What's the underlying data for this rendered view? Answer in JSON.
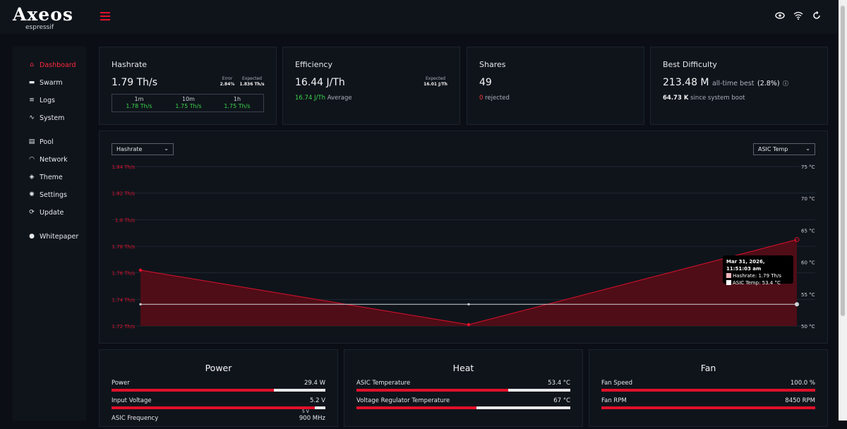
{
  "brand": {
    "name": "Axeos",
    "sub": "espressif"
  },
  "colors": {
    "accent": "#e0102a",
    "good": "#3bd44b",
    "bg": "#0b0f15",
    "card": "#0f141b"
  },
  "topbar": {
    "icons": [
      "eye-icon",
      "wifi-icon",
      "refresh-icon"
    ]
  },
  "sidebar": {
    "items": [
      {
        "label": "Dashboard",
        "icon": "home-icon",
        "glyph": "⌂",
        "active": true
      },
      {
        "label": "Swarm",
        "icon": "swarm-icon",
        "glyph": "▬"
      },
      {
        "label": "Logs",
        "icon": "list-icon",
        "glyph": "≡"
      },
      {
        "label": "System",
        "icon": "pulse-icon",
        "glyph": "∿"
      },
      {
        "label": "Pool",
        "icon": "server-icon",
        "glyph": "▤"
      },
      {
        "label": "Network",
        "icon": "wifi-icon",
        "glyph": "◠"
      },
      {
        "label": "Theme",
        "icon": "palette-icon",
        "glyph": "◈"
      },
      {
        "label": "Settings",
        "icon": "gear-icon",
        "glyph": "✺"
      },
      {
        "label": "Update",
        "icon": "sync-icon",
        "glyph": "⟳"
      },
      {
        "label": "Whitepaper",
        "icon": "bitcoin-icon",
        "glyph": "●"
      }
    ]
  },
  "hashrate": {
    "title": "Hashrate",
    "value": "1.79 Th/s",
    "error_label": "Error",
    "error_value": "2.84%",
    "expected_label": "Expected",
    "expected_value": "1.836 Th/s",
    "windows": [
      {
        "label": "1m",
        "value": "1.78 Th/s"
      },
      {
        "label": "10m",
        "value": "1.75 Th/s"
      },
      {
        "label": "1h",
        "value": "1.75 Th/s"
      }
    ]
  },
  "efficiency": {
    "title": "Efficiency",
    "value": "16.44 J/Th",
    "expected_label": "Expected",
    "expected_value": "16.01 J/Th",
    "average_value": "16.74 J/Th",
    "average_label": "Average"
  },
  "shares": {
    "title": "Shares",
    "value": "49",
    "rejected_value": "0",
    "rejected_label": "rejected"
  },
  "best": {
    "title": "Best Difficulty",
    "value": "213.48 M",
    "alltime_label": "all-time best",
    "alltime_pct": "(2.8%)",
    "boot_value": "64.73 K",
    "boot_label": "since system boot"
  },
  "chart_panel": {
    "left_select": "Hashrate",
    "right_select": "ASIC Temp"
  },
  "tooltip": {
    "time": "Mar 31, 2026, 11:51:03 am",
    "hashrate": "Hashrate: 1.79 Th/s",
    "temp": "ASIC Temp: 53.4 °C"
  },
  "chart_data": {
    "type": "line",
    "title": "",
    "x": [
      0,
      1,
      2
    ],
    "series": [
      {
        "name": "Hashrate",
        "axis": "left",
        "unit": "Th/s",
        "values": [
          1.762,
          1.721,
          1.785
        ],
        "color": "#e0102a",
        "fill": true
      },
      {
        "name": "ASIC Temp",
        "axis": "right",
        "unit": "°C",
        "values": [
          53.4,
          53.4,
          53.4
        ],
        "color": "#cfd3d8"
      }
    ],
    "left_ticks": [
      "1.84 Th/s",
      "1.82 Th/s",
      "1.8 Th/s",
      "1.78 Th/s",
      "1.76 Th/s",
      "1.74 Th/s",
      "1.72 Th/s"
    ],
    "left_range": [
      1.72,
      1.84
    ],
    "right_ticks": [
      "75 °C",
      "70 °C",
      "65 °C",
      "60 °C",
      "55 °C",
      "50 °C"
    ],
    "right_range": [
      50,
      75
    ],
    "grid": true
  },
  "power": {
    "title": "Power",
    "rows": [
      {
        "label": "Power",
        "value": "29.4 W",
        "pct": 0.76
      },
      {
        "label": "Input Voltage",
        "value": "5.2 V",
        "pct": 0.95,
        "marker_label": "5 V",
        "marker_pct": 0.91
      },
      {
        "label": "ASIC Frequency",
        "value": "900 MHz"
      }
    ]
  },
  "heat": {
    "title": "Heat",
    "rows": [
      {
        "label": "ASIC Temperature",
        "value": "53.4 °C",
        "pct": 0.71
      },
      {
        "label": "Voltage Regulator Temperature",
        "value": "67 °C",
        "pct": 0.56
      }
    ]
  },
  "fan": {
    "title": "Fan",
    "rows": [
      {
        "label": "Fan Speed",
        "value": "100.0 %",
        "pct": 1.0
      },
      {
        "label": "Fan RPM",
        "value": "8450 RPM",
        "pct": 1.0
      }
    ]
  }
}
